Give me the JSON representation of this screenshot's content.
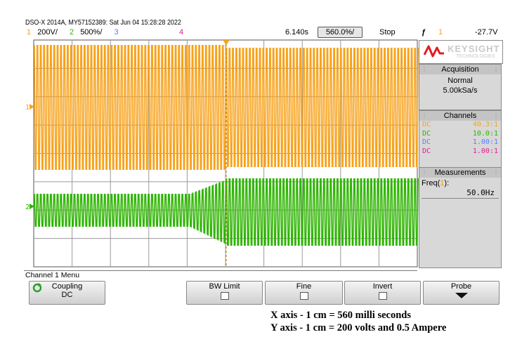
{
  "header": {
    "model_line": "DSO-X 2014A, MY57152389: Sat Jun 04 15:28:28 2022",
    "ch1_num": "1",
    "ch1_scale": "200V/",
    "ch2_num": "2",
    "ch2_scale": "500%/",
    "ch3_num": "3",
    "ch4_num": "4",
    "time_delay": "6.140s",
    "time_scale": "560.0%/",
    "run_state": "Stop",
    "trigger_symbol": "ƒ",
    "trigger_channel": "1",
    "trigger_level": "-27.7V"
  },
  "colors": {
    "ch1": "#f7a21b",
    "ch2": "#2db400",
    "ch3": "#5a7fff",
    "ch4": "#e01e96",
    "brand": "#e31b23"
  },
  "markers": {
    "ch1": "1",
    "ch2": "2"
  },
  "side_panel": {
    "brand_name": "KEYSIGHT",
    "brand_sub": "TECHNOLOGIES",
    "acquisition_title": "Acquisition",
    "acquisition_mode": "Normal",
    "sample_rate": "5.00kSa/s",
    "channels_title": "Channels",
    "channels": [
      {
        "coupling": "DC",
        "probe": "40.3:1"
      },
      {
        "coupling": "DC",
        "probe": "10.0:1"
      },
      {
        "coupling": "DC",
        "probe": "1.00:1"
      },
      {
        "coupling": "DC",
        "probe": "1.00:1"
      }
    ],
    "measurements_title": "Measurements",
    "meas_label_prefix": "Freq(",
    "meas_label_ch": "1",
    "meas_label_suffix": "):",
    "meas_value": "50.0Hz"
  },
  "menu": {
    "title": "Channel 1 Menu",
    "coupling_label": "Coupling",
    "coupling_value": "DC",
    "bw_limit_label": "BW Limit",
    "fine_label": "Fine",
    "invert_label": "Invert",
    "probe_label": "Probe"
  },
  "caption": {
    "line1": "X axis - 1 cm = 560 milli seconds",
    "line2": "Y axis - 1 cm = 200 volts and 0.5 Ampere"
  }
}
